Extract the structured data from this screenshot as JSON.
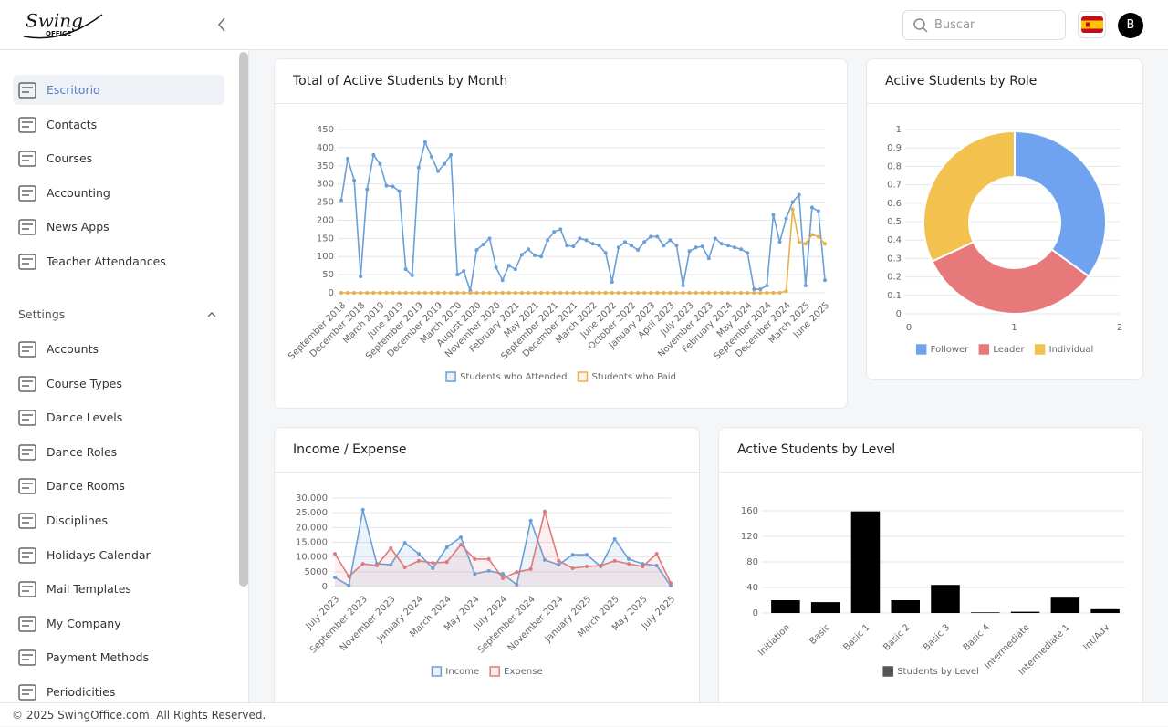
{
  "header": {
    "logo": "Swing",
    "logo_sub": "OFFICE",
    "search_placeholder": "Buscar",
    "avatar": "B"
  },
  "sidebar": {
    "main": [
      "Escritorio",
      "Contacts",
      "Courses",
      "Accounting",
      "News Apps",
      "Teacher Attendances"
    ],
    "settings_title": "Settings",
    "settings": [
      "Accounts",
      "Course Types",
      "Dance Levels",
      "Dance Roles",
      "Dance Rooms",
      "Disciplines",
      "Holidays Calendar",
      "Mail Templates",
      "My Company",
      "Payment Methods",
      "Periodicities"
    ]
  },
  "footer": "© 2025 SwingOffice.com. All Rights Reserved.",
  "chart_data": [
    {
      "type": "line",
      "title": "Total of Active Students by Month",
      "legend": "bottom",
      "grid": true,
      "fill": false,
      "categories": [
        "September 2018",
        null,
        null,
        "December 2018",
        null,
        null,
        "March 2019",
        null,
        null,
        "June 2019",
        null,
        null,
        "September 2019",
        null,
        null,
        "December 2019",
        null,
        null,
        "March 2020",
        null,
        null,
        "August 2020",
        null,
        null,
        "November 2020",
        null,
        null,
        "February 2021",
        null,
        null,
        "May 2021",
        null,
        null,
        "September 2021",
        null,
        null,
        "December 2021",
        null,
        null,
        "March 2022",
        null,
        null,
        "June 2022",
        null,
        null,
        "October 2022",
        null,
        null,
        "January 2023",
        null,
        null,
        "April 2023",
        null,
        null,
        "July 2023",
        null,
        null,
        "November 2023",
        null,
        null,
        "February 2024",
        null,
        null,
        "May 2024",
        null,
        null,
        "September 2024",
        null,
        null,
        "December 2024",
        null,
        null,
        "March 2025",
        null,
        null,
        "June 2025"
      ],
      "series": [
        {
          "name": "Students who Attended",
          "color": "#6a9fd8",
          "values": [
            255,
            370,
            310,
            45,
            285,
            380,
            355,
            295,
            293,
            280,
            65,
            48,
            345,
            415,
            375,
            335,
            355,
            380,
            50,
            60,
            5,
            118,
            133,
            150,
            70,
            35,
            75,
            65,
            105,
            120,
            103,
            100,
            145,
            168,
            175,
            130,
            128,
            150,
            145,
            135,
            130,
            110,
            30,
            125,
            140,
            130,
            118,
            140,
            155,
            155,
            130,
            145,
            130,
            20,
            115,
            125,
            128,
            95,
            150,
            135,
            130,
            125,
            120,
            110,
            10,
            10,
            20,
            215,
            140,
            205,
            250,
            270,
            20,
            235,
            225,
            35
          ]
        },
        {
          "name": "Students who Paid",
          "color": "#e9b04a",
          "values": [
            0,
            0,
            0,
            0,
            0,
            0,
            0,
            0,
            0,
            0,
            0,
            0,
            0,
            0,
            0,
            0,
            0,
            0,
            0,
            0,
            0,
            0,
            0,
            0,
            0,
            0,
            0,
            0,
            0,
            0,
            0,
            0,
            0,
            0,
            0,
            0,
            0,
            0,
            0,
            0,
            0,
            0,
            0,
            0,
            0,
            0,
            0,
            0,
            0,
            0,
            0,
            0,
            0,
            0,
            0,
            0,
            0,
            0,
            0,
            0,
            0,
            0,
            0,
            0,
            0,
            0,
            0,
            0,
            0,
            5,
            230,
            140,
            135,
            160,
            155,
            135
          ]
        }
      ],
      "ylim": [
        0,
        450
      ],
      "yticks": [
        0,
        50,
        100,
        150,
        200,
        250,
        300,
        350,
        400,
        450
      ]
    },
    {
      "type": "doughnut",
      "title": "Active Students by Role",
      "legend": "bottom",
      "grid": true,
      "categories": [
        "Follower",
        "Leader",
        "Individual"
      ],
      "values": [
        35,
        33,
        32
      ],
      "colors": [
        "#6fa3ef",
        "#e8797a",
        "#f2c14e"
      ],
      "ylim": [
        0,
        1
      ],
      "yticks": [
        0,
        0.1,
        0.2,
        0.3,
        0.4,
        0.5,
        0.6,
        0.7,
        0.8,
        0.9,
        1
      ],
      "xlim": [
        0,
        2
      ],
      "xticks": [
        0,
        1,
        2
      ]
    },
    {
      "type": "line",
      "title": "Income / Expense",
      "legend": "bottom",
      "grid": true,
      "fill": true,
      "categories": [
        "July 2023",
        null,
        "September 2023",
        null,
        "November 2023",
        null,
        "January 2024",
        null,
        "March 2024",
        null,
        "May 2024",
        null,
        "July 2024",
        null,
        "September 2024",
        null,
        "November 2024",
        null,
        "January 2025",
        null,
        "March 2025",
        null,
        "May 2025",
        null,
        "July 2025"
      ],
      "series": [
        {
          "name": "Income",
          "color": "#6a9fd8",
          "values": [
            3100,
            300,
            26000,
            7700,
            7400,
            14800,
            11100,
            6200,
            13300,
            16700,
            4300,
            5300,
            4300,
            600,
            22300,
            9000,
            7400,
            10800,
            10800,
            6800,
            16100,
            9300,
            7700,
            7100,
            300
          ]
        },
        {
          "name": "Expense",
          "color": "#e07a7a",
          "values": [
            11100,
            3400,
            7700,
            7100,
            13000,
            6500,
            8700,
            8000,
            8300,
            14200,
            9300,
            9300,
            2800,
            4900,
            5900,
            25400,
            8700,
            6200,
            6800,
            7100,
            8700,
            7700,
            6800,
            11100,
            1200
          ]
        }
      ],
      "ylim": [
        0,
        30000
      ],
      "yticks": [
        0,
        5000,
        {
          "value": 10000,
          "label": "10.000"
        },
        {
          "value": 15000,
          "label": "15.000"
        },
        {
          "value": 20000,
          "label": "20.000"
        },
        {
          "value": 25000,
          "label": "25.000"
        },
        {
          "value": 30000,
          "label": "30.000"
        }
      ]
    },
    {
      "type": "bar",
      "title": "Active Students by Level",
      "legend": "bottom",
      "grid": true,
      "categories": [
        "Initiation",
        "Basic",
        "Basic 1",
        "Basic 2",
        "Basic 3",
        "Basic 4",
        "Intermediate",
        "Intermediate 1",
        "Int/Adv"
      ],
      "series": [
        {
          "name": "Students by Level",
          "color": "#000000",
          "values": [
            20,
            17,
            159,
            20,
            44,
            1,
            2,
            24,
            6
          ]
        }
      ],
      "ylim": [
        0,
        160
      ],
      "yticks": [
        0,
        40,
        80,
        120,
        160
      ]
    }
  ]
}
